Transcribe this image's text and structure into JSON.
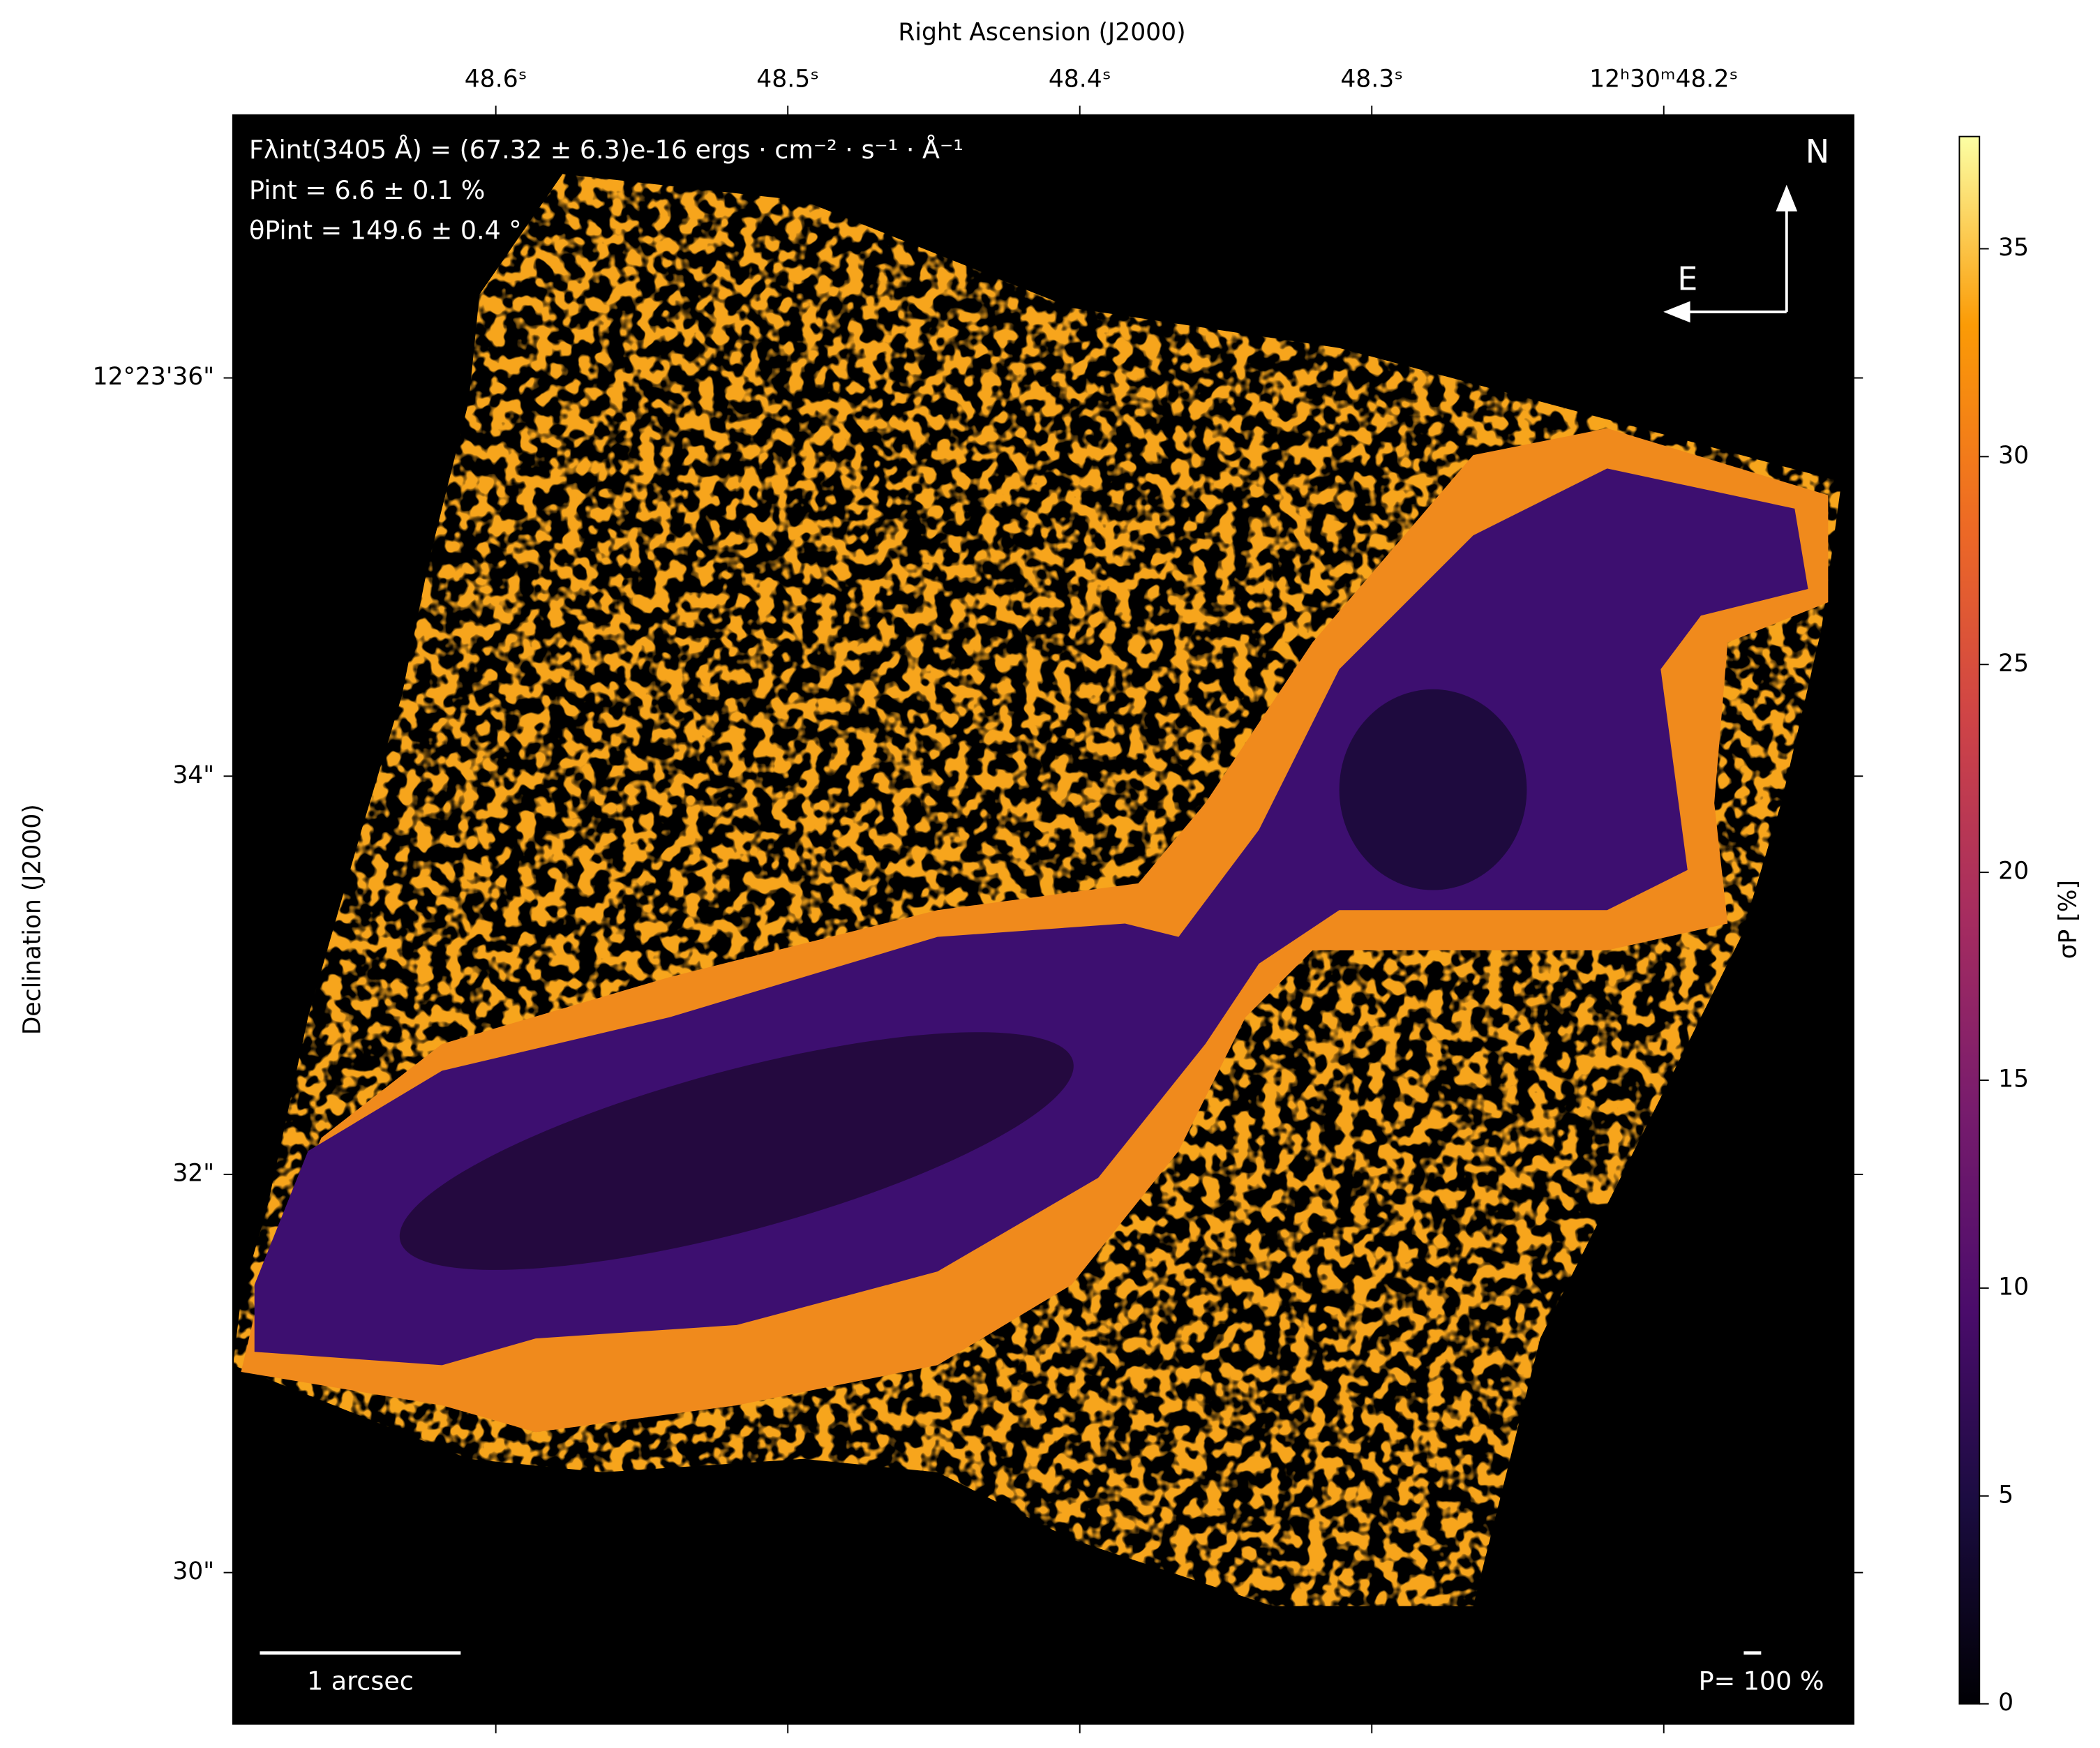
{
  "chart_data": {
    "type": "image",
    "x_label": "Right Ascension (J2000)",
    "y_label": "Declination (J2000)",
    "xlim": [
      48.69,
      48.135
    ],
    "xticks": [
      {
        "value": 48.6,
        "label": "48.6ˢ"
      },
      {
        "value": 48.5,
        "label": "48.5ˢ"
      },
      {
        "value": 48.4,
        "label": "48.4ˢ"
      },
      {
        "value": 48.3,
        "label": "48.3ˢ"
      },
      {
        "value": 48.2,
        "label": "12ʰ30ᵐ48.2ˢ"
      }
    ],
    "ylim": [
      29.24,
      37.32
    ],
    "yticks": [
      {
        "value": 36,
        "label": "12°23'36\""
      },
      {
        "value": 34,
        "label": "34\""
      },
      {
        "value": 32,
        "label": "32\""
      },
      {
        "value": 30,
        "label": "30\""
      }
    ],
    "colorbar": {
      "label": "σP [%]",
      "colormap": "inferno",
      "lim": [
        0,
        37.7
      ],
      "ticks": [
        0,
        5,
        10,
        15,
        20,
        25,
        30,
        35
      ]
    },
    "annotations": [
      "Fλint(3405 Å) = (67.32 ± 6.3)e-16 ergs · cm⁻² · s⁻¹ · Å⁻¹",
      "Pint = 6.6 ± 0.1 %",
      "θPint = 149.6 ± 0.4 °"
    ],
    "compass": {
      "north": "N",
      "east": "E"
    },
    "scale_bar": "1 arcsec",
    "vector_scale": "P= 100 %"
  }
}
